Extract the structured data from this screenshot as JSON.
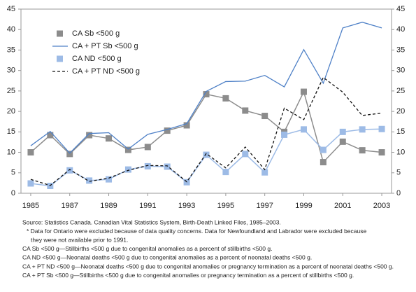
{
  "chart_data": {
    "type": "line",
    "x": [
      1985,
      1986,
      1987,
      1988,
      1989,
      1990,
      1991,
      1992,
      1993,
      1994,
      1995,
      1996,
      1997,
      1998,
      1999,
      2000,
      2001,
      2002,
      2003
    ],
    "xlim": [
      1984.5,
      2003.5
    ],
    "xticks": [
      1985,
      1987,
      1989,
      1991,
      1993,
      1995,
      1997,
      1999,
      2001,
      2003
    ],
    "ylim": [
      0,
      45
    ],
    "yticks": [
      0,
      5,
      10,
      15,
      20,
      25,
      30,
      35,
      40,
      45
    ],
    "y2lim": [
      0,
      45
    ],
    "y2ticks": [
      0,
      5,
      10,
      15,
      20,
      25,
      30,
      35,
      40,
      45
    ],
    "legend": "upper-left",
    "series": [
      {
        "name": "CA Sb <500 g",
        "color": "#8c8c8c",
        "style": "markers",
        "values": [
          10,
          14.2,
          9.6,
          14.2,
          13.4,
          10.6,
          11.3,
          15.3,
          16.6,
          24.2,
          23.2,
          20.2,
          18.9,
          15.0,
          24.8,
          7.6,
          12.6,
          10.5,
          10.0
        ]
      },
      {
        "name": "CA + PT Sb <500 g",
        "color": "#4f81c7",
        "style": "line",
        "values": [
          11.6,
          15.1,
          9.8,
          14.6,
          14.8,
          10.8,
          14.4,
          15.6,
          17.0,
          24.9,
          27.3,
          27.4,
          28.8,
          26.0,
          35.1,
          26.9,
          40.4,
          41.8,
          40.4
        ]
      },
      {
        "name": "CA ND <500 g",
        "color": "#9dbbe6",
        "style": "markers",
        "values": [
          2.4,
          1.8,
          5.6,
          3.1,
          3.4,
          5.8,
          6.6,
          6.5,
          2.7,
          9.4,
          5.2,
          9.6,
          5.1,
          14.3,
          15.6,
          10.6,
          15.0,
          15.6,
          15.7
        ]
      },
      {
        "name": "CA + PT ND <500 g",
        "color": "#111111",
        "style": "dashed",
        "values": [
          3.4,
          1.9,
          5.8,
          2.9,
          3.7,
          5.6,
          6.8,
          6.7,
          2.8,
          9.7,
          6.2,
          11.3,
          5.8,
          20.8,
          18.0,
          28.3,
          24.7,
          19.0,
          19.6
        ]
      }
    ],
    "notes": [
      "Source: Statistics Canada. Canadian Vital Statistics System, Birth-Death Linked Files, 1985–2003.",
      "* Data for Ontario were excluded because of data quality concerns. Data for Newfoundland and Labrador were excluded because",
      "they were not available prior to 1991.",
      "CA Sb <500 g—Stillbirths <500 g due to congenital anomalies as a percent of stillbirths <500 g.",
      "CA ND <500 g—Neonatal deaths <500 g due to congenital anomalies as a percent of neonatal deaths <500 g.",
      "CA + PT ND <500 g—Neonatal deaths <500 g due to congenital anomalies or pregnancy termination as a percent of neonatal deaths <500 g.",
      "CA + PT Sb <500 g—Stillbirths <500 g due to congenital anomalies or pregnancy termination as a percent of stillbirths <500 g."
    ]
  }
}
